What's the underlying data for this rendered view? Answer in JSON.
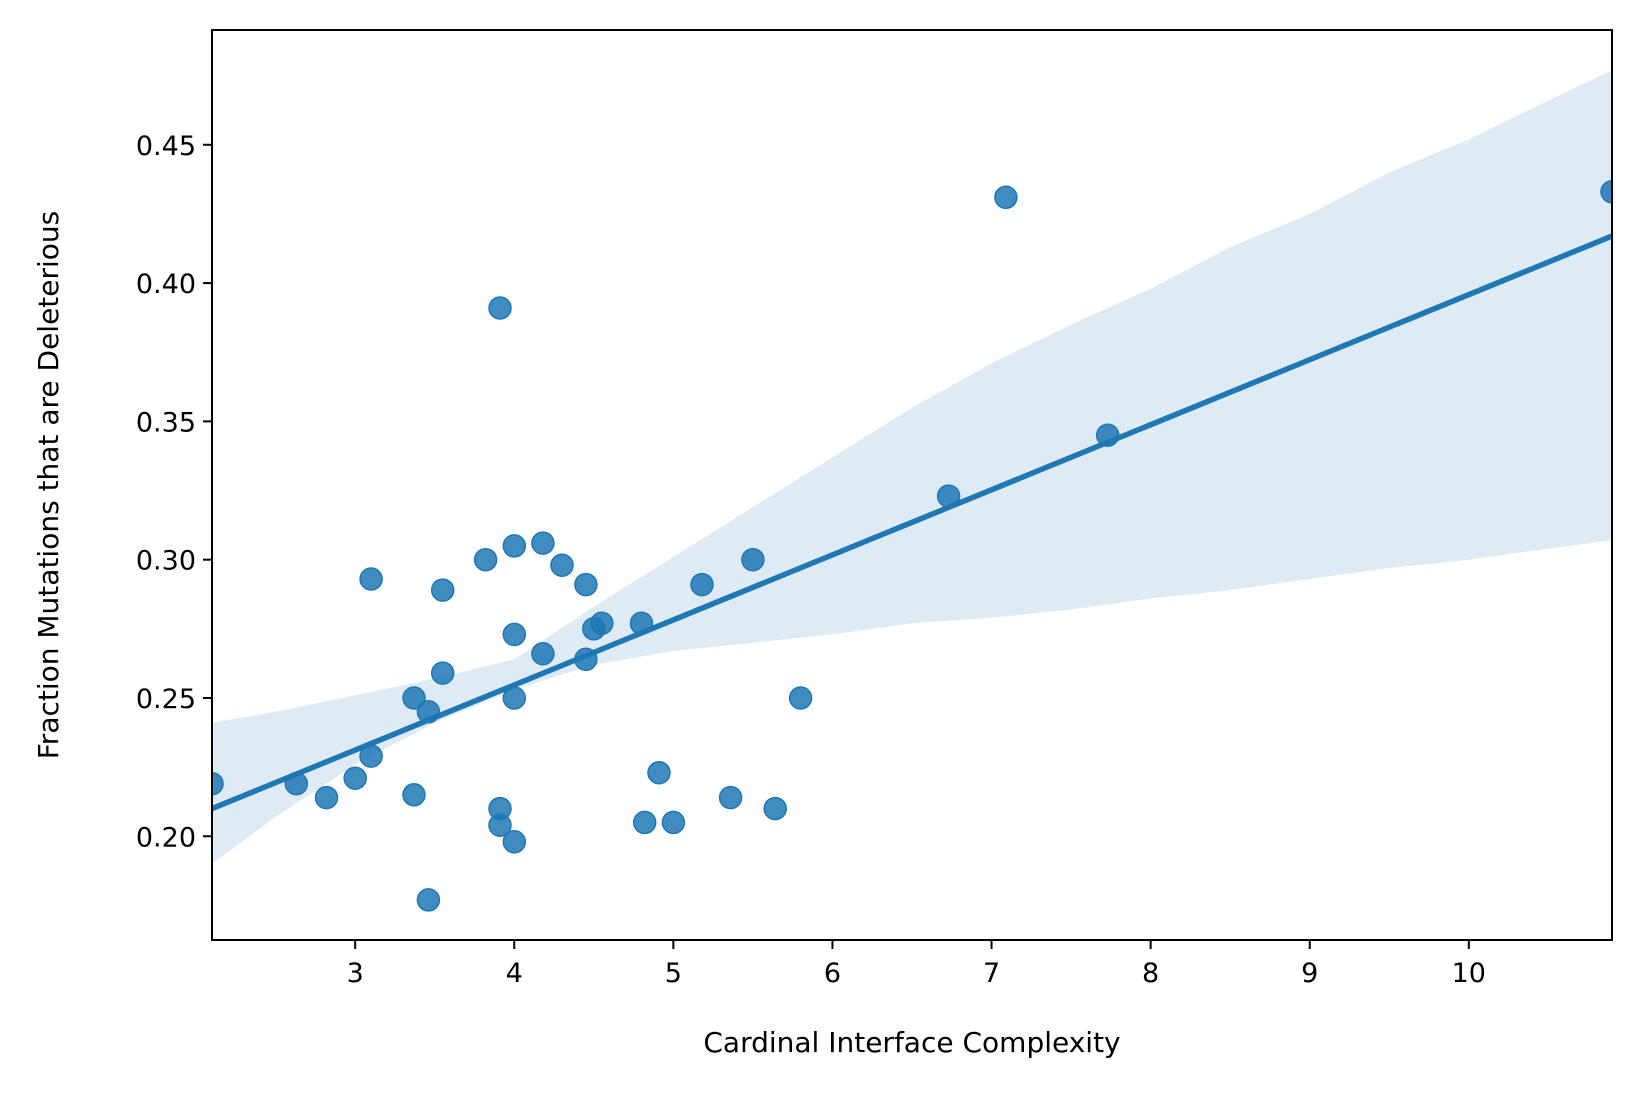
{
  "chart_data": {
    "type": "scatter",
    "title": "",
    "xlabel": "Cardinal Interface Complexity",
    "ylabel": "Fraction Mutations that are Deleterious",
    "xlim": [
      2.1,
      10.9
    ],
    "ylim": [
      0.1625,
      0.4915
    ],
    "xticks": [
      3,
      4,
      5,
      6,
      7,
      8,
      9,
      10
    ],
    "yticks": [
      0.2,
      0.25,
      0.3,
      0.35,
      0.4,
      0.45
    ],
    "xtick_labels": [
      "3",
      "4",
      "5",
      "6",
      "7",
      "8",
      "9",
      "10"
    ],
    "ytick_labels": [
      "0.20",
      "0.25",
      "0.30",
      "0.35",
      "0.40",
      "0.45"
    ],
    "grid": false,
    "legend": "none",
    "colors": {
      "points": "#1f77b4",
      "line": "#1f77b4",
      "band": "#1f77b4"
    },
    "regression": {
      "x": [
        2.1,
        10.9
      ],
      "y": [
        0.21,
        0.417
      ]
    },
    "confidence_band": {
      "x": [
        2.1,
        2.5,
        3.0,
        3.5,
        4.0,
        4.5,
        5.0,
        5.5,
        6.0,
        6.5,
        7.0,
        7.5,
        8.0,
        8.5,
        9.0,
        9.5,
        10.0,
        10.5,
        10.9
      ],
      "lower": [
        0.19,
        0.207,
        0.226,
        0.241,
        0.253,
        0.262,
        0.267,
        0.27,
        0.273,
        0.277,
        0.279,
        0.282,
        0.286,
        0.289,
        0.293,
        0.297,
        0.3,
        0.304,
        0.307
      ],
      "upper": [
        0.241,
        0.245,
        0.251,
        0.257,
        0.264,
        0.283,
        0.301,
        0.319,
        0.337,
        0.355,
        0.371,
        0.385,
        0.398,
        0.413,
        0.425,
        0.44,
        0.452,
        0.466,
        0.477
      ]
    },
    "points": {
      "x": [
        2.1,
        2.63,
        2.82,
        3.0,
        3.1,
        3.1,
        3.37,
        3.37,
        3.46,
        3.46,
        3.55,
        3.55,
        3.82,
        3.91,
        3.91,
        3.91,
        4.0,
        4.0,
        4.0,
        4.0,
        4.18,
        4.18,
        4.3,
        4.45,
        4.45,
        4.5,
        4.55,
        4.8,
        4.82,
        4.91,
        5.0,
        5.18,
        5.36,
        5.5,
        5.64,
        5.8,
        6.73,
        7.09,
        7.73,
        10.9
      ],
      "y": [
        0.219,
        0.219,
        0.214,
        0.221,
        0.229,
        0.293,
        0.25,
        0.215,
        0.245,
        0.177,
        0.259,
        0.289,
        0.3,
        0.391,
        0.21,
        0.204,
        0.305,
        0.273,
        0.25,
        0.198,
        0.306,
        0.266,
        0.298,
        0.291,
        0.264,
        0.275,
        0.277,
        0.277,
        0.205,
        0.223,
        0.205,
        0.291,
        0.214,
        0.3,
        0.21,
        0.25,
        0.323,
        0.431,
        0.345,
        0.433
      ]
    }
  }
}
